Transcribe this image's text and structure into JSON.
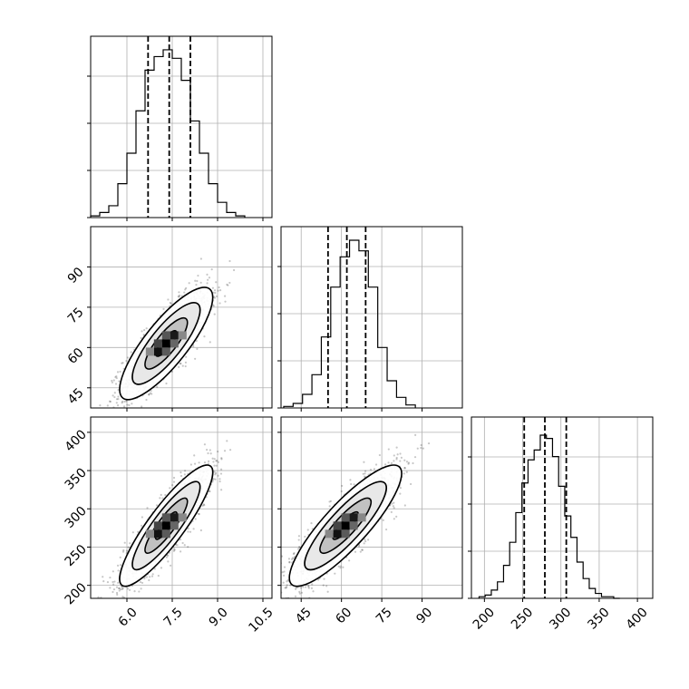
{
  "chart_data": {
    "type": "corner",
    "parameters": [
      {
        "id": "p1",
        "label": "",
        "range": [
          4.8,
          10.8
        ],
        "ticks": [
          6.0,
          7.5,
          9.0,
          10.5
        ],
        "tick_labels": [
          "6.0",
          "7.5",
          "9.0",
          "10.5"
        ],
        "quantiles": [
          6.7,
          7.4,
          8.1
        ]
      },
      {
        "id": "p2",
        "label": "",
        "range": [
          37.5,
          105
        ],
        "ticks": [
          45,
          60,
          75,
          90
        ],
        "tick_labels": [
          "45",
          "60",
          "75",
          "90"
        ],
        "quantiles": [
          55,
          62,
          69
        ]
      },
      {
        "id": "p3",
        "label": "",
        "range": [
          183,
          420
        ],
        "ticks": [
          200,
          250,
          300,
          350,
          400
        ],
        "tick_labels": [
          "200",
          "250",
          "300",
          "350",
          "400"
        ],
        "quantiles": [
          252,
          279,
          307
        ]
      }
    ],
    "histograms": [
      {
        "param": "p1",
        "bin_edges": [
          4.8,
          5.1,
          5.4,
          5.7,
          6.0,
          6.3,
          6.6,
          6.9,
          7.2,
          7.5,
          7.8,
          8.1,
          8.4,
          8.7,
          9.0,
          9.3,
          9.6,
          9.9
        ],
        "counts": [
          1,
          3,
          7,
          20,
          38,
          63,
          87,
          95,
          99,
          94,
          81,
          57,
          38,
          20,
          9,
          3,
          1
        ],
        "ylim": [
          0,
          107
        ]
      },
      {
        "param": "p2",
        "bin_edges": [
          38.5,
          42.0,
          45.5,
          49.0,
          52.5,
          56.0,
          59.5,
          63.0,
          66.5,
          70.0,
          73.5,
          77.0,
          80.5,
          84.0,
          87.5
        ],
        "counts": [
          1,
          3,
          9,
          22,
          47,
          80,
          100,
          111,
          104,
          80,
          40,
          18,
          7,
          2
        ],
        "ylim": [
          0,
          120
        ]
      },
      {
        "param": "p3",
        "bin_edges": [
          193,
          201,
          209,
          217,
          225,
          233,
          241,
          249,
          257,
          265,
          273,
          281,
          289,
          297,
          305,
          313,
          321,
          329,
          337,
          345,
          353,
          361,
          369,
          377
        ],
        "counts": [
          1,
          2,
          5,
          10,
          20,
          34,
          52,
          70,
          84,
          90,
          99,
          97,
          86,
          68,
          50,
          37,
          22,
          12,
          6,
          3,
          1,
          1,
          0
        ],
        "ylim": [
          0,
          110
        ]
      }
    ],
    "scatter_panels": [
      {
        "x": "p1",
        "y": "p2",
        "mean": [
          7.3,
          61.5
        ],
        "sd": [
          0.7,
          9.5
        ],
        "rho": 0.82,
        "contour_levels": [
          0.5,
          1.0,
          1.6,
          2.2
        ]
      },
      {
        "x": "p1",
        "y": "p3",
        "mean": [
          7.3,
          278
        ],
        "sd": [
          0.7,
          36
        ],
        "rho": 0.88,
        "contour_levels": [
          0.5,
          1.0,
          1.6,
          2.2
        ]
      },
      {
        "x": "p2",
        "y": "p3",
        "mean": [
          61.5,
          278
        ],
        "sd": [
          9.5,
          36
        ],
        "rho": 0.86,
        "contour_levels": [
          0.5,
          1.0,
          1.6,
          2.2
        ]
      }
    ],
    "grid": true
  }
}
